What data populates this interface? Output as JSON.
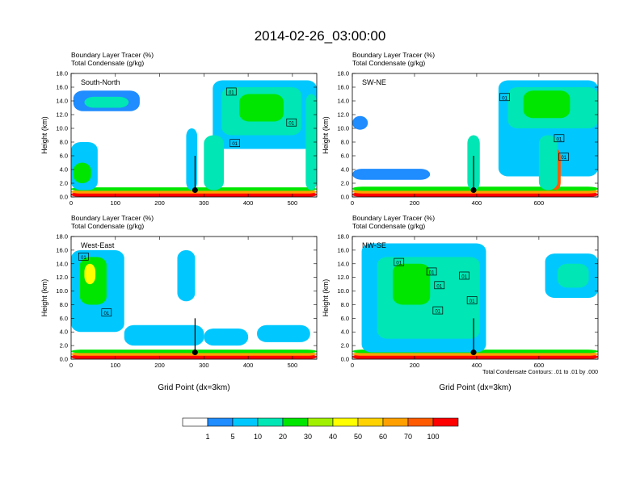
{
  "title": "2014-02-26_03:00:00",
  "color_scale": {
    "colors": [
      "#ffffff",
      "#1f8cff",
      "#00c8ff",
      "#00e6b4",
      "#00e600",
      "#a0f000",
      "#ffff00",
      "#ffd200",
      "#ffa000",
      "#ff5a00",
      "#ff0000"
    ],
    "labels": [
      "1",
      "5",
      "10",
      "20",
      "30",
      "40",
      "50",
      "60",
      "70",
      "100"
    ]
  },
  "footer_note": "Total Condensate Contours: .01 to .01 by .000",
  "chart_data": [
    {
      "type": "heatmap",
      "id": "south-north",
      "panel_label": "South-North",
      "subtitle1": "Boundary Layer Tracer    (%)",
      "subtitle2": "Total Condensate    (g/kg)",
      "ylabel": "Height (km)",
      "xlabel": "",
      "xlim": [
        0,
        555
      ],
      "ylim": [
        0,
        18
      ],
      "xticks": [
        0,
        100,
        200,
        300,
        400,
        500
      ],
      "xtick_labels": [
        "0",
        "100",
        "200",
        "300",
        "400",
        "500"
      ],
      "yticks": [
        0,
        2,
        4,
        6,
        8,
        10,
        12,
        14,
        16,
        18
      ],
      "ytick_labels": [
        "0.0",
        "2.0",
        "4.0",
        "6.0",
        "8.0",
        "10.0",
        "12.0",
        "14.0",
        "16.0",
        "18.0"
      ],
      "marker": {
        "x": 280,
        "y": 1.0
      },
      "contour_labels": [
        {
          "x": 362,
          "y": 15.3,
          "text": "01"
        },
        {
          "x": 370,
          "y": 7.8,
          "text": "01"
        },
        {
          "x": 498,
          "y": 10.8,
          "text": "01"
        }
      ],
      "blobs": [
        {
          "x": 0,
          "y": 0,
          "w": 555,
          "h": 0.7,
          "level": 10
        },
        {
          "x": 0,
          "y": 0.5,
          "w": 555,
          "h": 0.5,
          "level": 8
        },
        {
          "x": 0,
          "y": 0.9,
          "w": 555,
          "h": 0.5,
          "level": 4
        },
        {
          "x": 5,
          "y": 12.5,
          "w": 150,
          "h": 3.0,
          "level": 1
        },
        {
          "x": 30,
          "y": 13.0,
          "w": 100,
          "h": 1.6,
          "level": 3
        },
        {
          "x": 0,
          "y": 1.0,
          "w": 60,
          "h": 7.0,
          "level": 2
        },
        {
          "x": 5,
          "y": 2.0,
          "w": 40,
          "h": 3.0,
          "level": 4
        },
        {
          "x": 320,
          "y": 7.0,
          "w": 235,
          "h": 10.0,
          "level": 2
        },
        {
          "x": 340,
          "y": 9.0,
          "w": 180,
          "h": 7.0,
          "level": 3
        },
        {
          "x": 380,
          "y": 11.0,
          "w": 100,
          "h": 4.0,
          "level": 4
        },
        {
          "x": 300,
          "y": 1.0,
          "w": 45,
          "h": 8.0,
          "level": 3
        },
        {
          "x": 260,
          "y": 1.0,
          "w": 25,
          "h": 9.0,
          "level": 2
        },
        {
          "x": 530,
          "y": 1.0,
          "w": 25,
          "h": 14.0,
          "level": 3
        }
      ]
    },
    {
      "type": "heatmap",
      "id": "sw-ne",
      "panel_label": "SW-NE",
      "subtitle1": "Boundary Layer Tracer    (%)",
      "subtitle2": "Total Condensate    (g/kg)",
      "ylabel": "Height (km)",
      "xlabel": "",
      "xlim": [
        0,
        790
      ],
      "ylim": [
        0,
        18
      ],
      "xticks": [
        0,
        200,
        400,
        600
      ],
      "xtick_labels": [
        "0",
        "200",
        "400",
        "600"
      ],
      "yticks": [
        0,
        2,
        4,
        6,
        8,
        10,
        12,
        14,
        16,
        18
      ],
      "ytick_labels": [
        "0.0",
        "2.0",
        "4.0",
        "6.0",
        "8.0",
        "10.0",
        "12.0",
        "14.0",
        "16.0",
        "18.0"
      ],
      "marker": {
        "x": 390,
        "y": 1.0
      },
      "contour_labels": [
        {
          "x": 490,
          "y": 14.5,
          "text": "01"
        },
        {
          "x": 665,
          "y": 8.5,
          "text": "01"
        },
        {
          "x": 680,
          "y": 5.8,
          "text": "01"
        }
      ],
      "blobs": [
        {
          "x": 0,
          "y": 0,
          "w": 790,
          "h": 0.7,
          "level": 10
        },
        {
          "x": 0,
          "y": 0.5,
          "w": 790,
          "h": 0.6,
          "level": 8
        },
        {
          "x": 0,
          "y": 0.9,
          "w": 790,
          "h": 0.6,
          "level": 4
        },
        {
          "x": 0,
          "y": 2.5,
          "w": 250,
          "h": 1.6,
          "level": 1
        },
        {
          "x": 0,
          "y": 9.8,
          "w": 50,
          "h": 2.0,
          "level": 1
        },
        {
          "x": 470,
          "y": 3.0,
          "w": 320,
          "h": 14.0,
          "level": 2
        },
        {
          "x": 500,
          "y": 10.0,
          "w": 290,
          "h": 6.0,
          "level": 3
        },
        {
          "x": 550,
          "y": 11.5,
          "w": 150,
          "h": 4.0,
          "level": 4
        },
        {
          "x": 370,
          "y": 1.0,
          "w": 40,
          "h": 8.0,
          "level": 3
        },
        {
          "x": 640,
          "y": 1.0,
          "w": 30,
          "h": 6.0,
          "level": 9
        },
        {
          "x": 600,
          "y": 1.0,
          "w": 60,
          "h": 8.0,
          "level": 3
        }
      ]
    },
    {
      "type": "heatmap",
      "id": "west-east",
      "panel_label": "West-East",
      "subtitle1": "Boundary Layer Tracer    (%)",
      "subtitle2": "Total Condensate    (g/kg)",
      "ylabel": "Height (km)",
      "xlabel": "Grid Point (dx=3km)",
      "xlim": [
        0,
        555
      ],
      "ylim": [
        0,
        18
      ],
      "xticks": [
        0,
        100,
        200,
        300,
        400,
        500
      ],
      "xtick_labels": [
        "0",
        "100",
        "200",
        "300",
        "400",
        "500"
      ],
      "yticks": [
        0,
        2,
        4,
        6,
        8,
        10,
        12,
        14,
        16,
        18
      ],
      "ytick_labels": [
        "0.0",
        "2.0",
        "4.0",
        "6.0",
        "8.0",
        "10.0",
        "12.0",
        "14.0",
        "16.0",
        "18.0"
      ],
      "marker": {
        "x": 280,
        "y": 1.0
      },
      "contour_labels": [
        {
          "x": 28,
          "y": 15.0,
          "text": "01"
        },
        {
          "x": 80,
          "y": 6.8,
          "text": "01"
        }
      ],
      "blobs": [
        {
          "x": 0,
          "y": 0,
          "w": 555,
          "h": 0.7,
          "level": 10
        },
        {
          "x": 0,
          "y": 0.5,
          "w": 555,
          "h": 0.5,
          "level": 8
        },
        {
          "x": 0,
          "y": 0.9,
          "w": 555,
          "h": 0.5,
          "level": 4
        },
        {
          "x": 0,
          "y": 4.0,
          "w": 120,
          "h": 12.0,
          "level": 2
        },
        {
          "x": 20,
          "y": 8.0,
          "w": 60,
          "h": 7.0,
          "level": 4
        },
        {
          "x": 30,
          "y": 11.0,
          "w": 25,
          "h": 3.0,
          "level": 6
        },
        {
          "x": 120,
          "y": 2.0,
          "w": 180,
          "h": 3.0,
          "level": 2
        },
        {
          "x": 240,
          "y": 8.5,
          "w": 40,
          "h": 7.5,
          "level": 2
        },
        {
          "x": 300,
          "y": 2.0,
          "w": 100,
          "h": 2.5,
          "level": 2
        },
        {
          "x": 420,
          "y": 2.5,
          "w": 120,
          "h": 2.5,
          "level": 2
        }
      ]
    },
    {
      "type": "heatmap",
      "id": "nw-se",
      "panel_label": "NW-SE",
      "subtitle1": "Boundary Layer Tracer    (%)",
      "subtitle2": "Total Condensate    (g/kg)",
      "ylabel": "Height (km)",
      "xlabel": "Grid Point (dx=3km)",
      "xlim": [
        0,
        790
      ],
      "ylim": [
        0,
        18
      ],
      "xticks": [
        0,
        200,
        400,
        600
      ],
      "xtick_labels": [
        "0",
        "200",
        "400",
        "600"
      ],
      "yticks": [
        0,
        2,
        4,
        6,
        8,
        10,
        12,
        14,
        16,
        18
      ],
      "ytick_labels": [
        "0.0",
        "2.0",
        "4.0",
        "6.0",
        "8.0",
        "10.0",
        "12.0",
        "14.0",
        "16.0",
        "18.0"
      ],
      "marker": {
        "x": 390,
        "y": 1.0
      },
      "contour_labels": [
        {
          "x": 150,
          "y": 14.2,
          "text": "01"
        },
        {
          "x": 255,
          "y": 12.8,
          "text": "01"
        },
        {
          "x": 280,
          "y": 10.8,
          "text": "01"
        },
        {
          "x": 275,
          "y": 7.1,
          "text": "01"
        },
        {
          "x": 360,
          "y": 12.2,
          "text": "01"
        },
        {
          "x": 385,
          "y": 8.6,
          "text": "01"
        }
      ],
      "blobs": [
        {
          "x": 0,
          "y": 0,
          "w": 790,
          "h": 0.7,
          "level": 10
        },
        {
          "x": 0,
          "y": 0.5,
          "w": 790,
          "h": 0.5,
          "level": 8
        },
        {
          "x": 0,
          "y": 0.9,
          "w": 790,
          "h": 0.5,
          "level": 4
        },
        {
          "x": 30,
          "y": 1.0,
          "w": 400,
          "h": 16.0,
          "level": 2
        },
        {
          "x": 80,
          "y": 3.0,
          "w": 330,
          "h": 12.0,
          "level": 3
        },
        {
          "x": 130,
          "y": 8.0,
          "w": 120,
          "h": 6.0,
          "level": 4
        },
        {
          "x": 620,
          "y": 9.0,
          "w": 170,
          "h": 6.5,
          "level": 2
        },
        {
          "x": 660,
          "y": 10.5,
          "w": 100,
          "h": 3.5,
          "level": 3
        }
      ]
    }
  ]
}
